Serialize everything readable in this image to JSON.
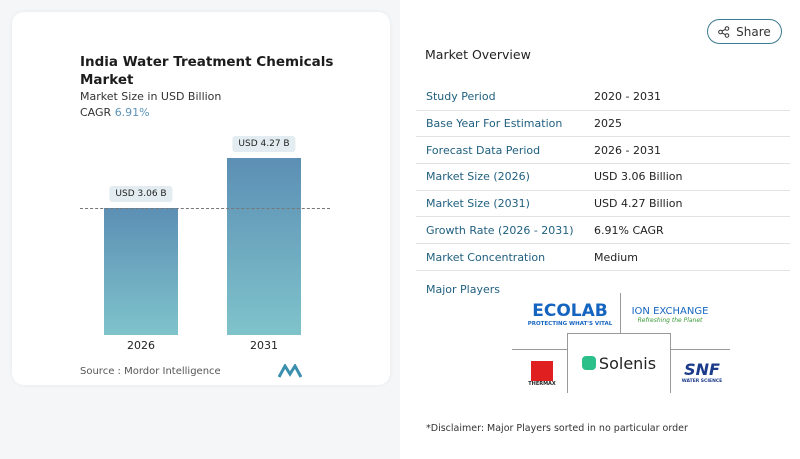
{
  "chart": {
    "title": "India Water Treatment Chemicals Market",
    "subtitle": "Market Size in USD Billion",
    "cagr_label": "CAGR",
    "cagr_value": "6.91%",
    "source": "Source : Mordor Intelligence"
  },
  "chart_data": {
    "type": "bar",
    "categories": [
      "2026",
      "2031"
    ],
    "values": [
      3.06,
      4.27
    ],
    "data_labels": [
      "USD 3.06 B",
      "USD 4.27 B"
    ],
    "colors": [
      "#5c8fb4",
      "#7fc3cb"
    ]
  },
  "share_label": "Share",
  "overview": {
    "title": "Market Overview",
    "rows": [
      {
        "k": "Study Period",
        "v": "2020 - 2031"
      },
      {
        "k": "Base Year For Estimation",
        "v": "2025"
      },
      {
        "k": "Forecast Data Period",
        "v": "2026 - 2031"
      },
      {
        "k": "Market Size (2026)",
        "v": "USD 3.06 Billion"
      },
      {
        "k": "Market Size (2031)",
        "v": "USD 4.27 Billion"
      },
      {
        "k": "Growth Rate (2026 - 2031)",
        "v": "6.91% CAGR"
      },
      {
        "k": "Market Concentration",
        "v": "Medium"
      }
    ]
  },
  "players": {
    "title": "Major Players",
    "logos": [
      {
        "name": "ECOLAB",
        "tag": "PROTECTING WHAT'S VITAL"
      },
      {
        "name": "ION EXCHANGE",
        "tag": "Refreshing the Planet"
      },
      {
        "name": "THERMAX"
      },
      {
        "name": "Solenis"
      },
      {
        "name": "SNF",
        "tag": "WATER SCIENCE"
      }
    ]
  },
  "disclaimer": "*Disclaimer: Major Players sorted in no particular order"
}
